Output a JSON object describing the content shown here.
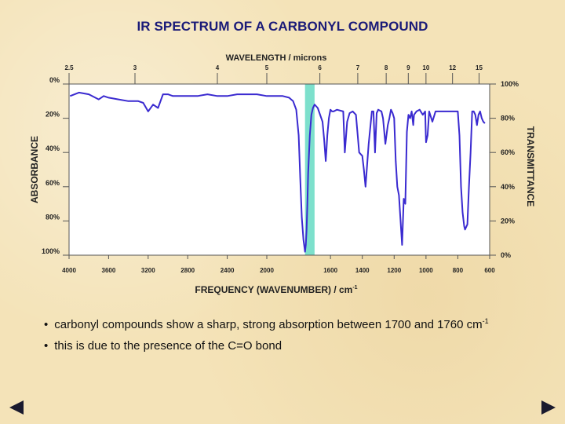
{
  "slide": {
    "title": "IR SPECTRUM OF A CARBONYL COMPOUND",
    "bullets": [
      {
        "text": "carbonyl compounds show a sharp, strong absorption between 1700 and 1760 cm",
        "sup": "-1"
      },
      {
        "text": "this is due to the presence of the C=O bond",
        "sup": ""
      }
    ]
  },
  "chart_data": {
    "type": "line",
    "top_axis_label": "WAVELENGTH / microns",
    "top_ticks": [
      {
        "label": "2.5",
        "um": 2.5
      },
      {
        "label": "3",
        "um": 3
      },
      {
        "label": "4",
        "um": 4
      },
      {
        "label": "5",
        "um": 5
      },
      {
        "label": "6",
        "um": 6
      },
      {
        "label": "7",
        "um": 7
      },
      {
        "label": "8",
        "um": 8
      },
      {
        "label": "9",
        "um": 9
      },
      {
        "label": "10",
        "um": 10
      },
      {
        "label": "12",
        "um": 12
      },
      {
        "label": "15",
        "um": 15
      }
    ],
    "bottom_axis_label": "FREQUENCY (WAVENUMBER) / cm",
    "bottom_axis_unit_sup": "-1",
    "bottom_ticks_high": [
      "4000",
      "3600",
      "3200",
      "2800",
      "2400",
      "2000"
    ],
    "bottom_ticks_high_values": [
      4000,
      3600,
      3200,
      2800,
      2400,
      2000
    ],
    "bottom_ticks_low": [
      "1600",
      "1400",
      "1200",
      "1000",
      "800",
      "600"
    ],
    "bottom_ticks_low_values": [
      1600,
      1400,
      1200,
      1000,
      800,
      600
    ],
    "left_axis_label": "ABSORBANCE",
    "left_ticks": [
      {
        "label": "0%",
        "t": 100
      },
      {
        "label": "20%",
        "t": 80
      },
      {
        "label": "40%",
        "t": 60
      },
      {
        "label": "60%",
        "t": 40
      },
      {
        "label": "80%",
        "t": 20
      },
      {
        "label": "100%",
        "t": 0
      }
    ],
    "right_axis_label": "TRANSMITTANCE",
    "right_ticks": [
      {
        "label": "100%",
        "t": 100
      },
      {
        "label": "80%",
        "t": 80
      },
      {
        "label": "60%",
        "t": 60
      },
      {
        "label": "40%",
        "t": 40
      },
      {
        "label": "20%",
        "t": 20
      },
      {
        "label": "0%",
        "t": 0
      }
    ],
    "highlight_band": [
      1760,
      1700
    ],
    "highlight_color": "#7de0cc",
    "line_color": "#3a2ad0",
    "series": [
      {
        "x": [
          3990,
          3900,
          3800,
          3700,
          3650,
          3600,
          3500,
          3400,
          3300,
          3250,
          3200,
          3150,
          3100,
          3050,
          3000,
          2950,
          2900,
          2800,
          2700,
          2600,
          2500,
          2400,
          2300,
          2200,
          2100,
          2000,
          1950,
          1900,
          1860,
          1835,
          1815,
          1800,
          1790,
          1780,
          1770,
          1760,
          1755,
          1750,
          1745,
          1740,
          1730,
          1720,
          1710,
          1700,
          1680,
          1650,
          1640,
          1630,
          1625,
          1620,
          1610,
          1600,
          1590,
          1580,
          1560,
          1520,
          1510,
          1495,
          1480,
          1460,
          1440,
          1420,
          1400,
          1390,
          1380,
          1360,
          1340,
          1330,
          1320,
          1310,
          1300,
          1280,
          1270,
          1255,
          1240,
          1230,
          1220,
          1210,
          1200,
          1190,
          1180,
          1170,
          1150,
          1140,
          1130,
          1120,
          1110,
          1100,
          1090,
          1080,
          1075,
          1060,
          1040,
          1020,
          1005,
          1000,
          990,
          980,
          960,
          940,
          920,
          900,
          880,
          860,
          850,
          840,
          820,
          810,
          800,
          790,
          780,
          770,
          760,
          755,
          740,
          730,
          720,
          710,
          700,
          690,
          680,
          670,
          660,
          650,
          640,
          630
        ],
        "y": [
          93,
          95,
          94,
          91,
          93,
          92,
          91,
          90,
          90,
          89,
          84,
          88,
          86,
          94,
          94,
          93,
          93,
          93,
          93,
          94,
          93,
          93,
          94,
          94,
          94,
          93,
          93,
          93,
          92,
          90,
          85,
          70,
          45,
          22,
          9,
          2,
          6,
          15,
          30,
          48,
          70,
          82,
          86,
          88,
          86,
          78,
          68,
          55,
          62,
          70,
          80,
          85,
          84,
          84,
          85,
          84,
          60,
          78,
          83,
          84,
          82,
          60,
          58,
          50,
          40,
          65,
          84,
          84,
          60,
          83,
          85,
          84,
          80,
          65,
          76,
          80,
          85,
          83,
          80,
          55,
          40,
          35,
          6,
          33,
          30,
          72,
          82,
          80,
          84,
          76,
          82,
          84,
          85,
          82,
          84,
          66,
          70,
          84,
          78,
          84,
          84,
          84,
          84,
          84,
          84,
          84,
          84,
          84,
          84,
          70,
          40,
          25,
          17,
          15,
          18,
          40,
          60,
          84,
          84,
          82,
          76,
          82,
          84,
          80,
          78,
          77
        ]
      }
    ]
  }
}
